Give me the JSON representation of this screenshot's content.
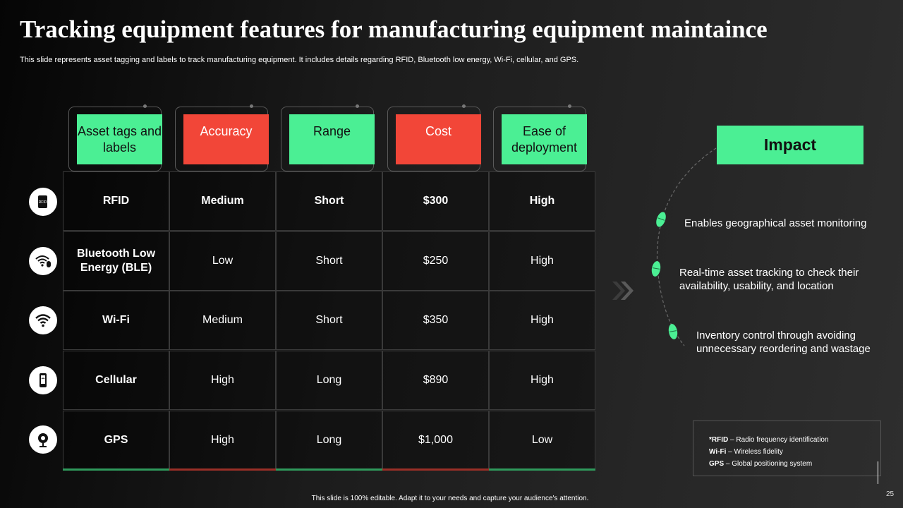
{
  "title": "Tracking equipment features for manufacturing equipment maintaince",
  "subtitle": "This slide represents asset tagging and labels to track manufacturing equipment. It includes details regarding RFID, Bluetooth low energy, Wi-Fi, cellular, and GPS.",
  "table": {
    "headers": [
      {
        "label": "Asset tags and labels",
        "color": "#4bef94"
      },
      {
        "label": "Accuracy",
        "color": "#f24638"
      },
      {
        "label": "Range",
        "color": "#4bef94"
      },
      {
        "label": "Cost",
        "color": "#f24638"
      },
      {
        "label": "Ease of deployment",
        "color": "#4bef94"
      }
    ],
    "rows": [
      {
        "icon": "rfid-tag-icon",
        "cells": [
          "RFID",
          "Medium",
          "Short",
          "$300",
          "High"
        ]
      },
      {
        "icon": "wifi-bluetooth-icon",
        "cells": [
          "Bluetooth Low Energy (BLE)",
          "Low",
          "Short",
          "$250",
          "High"
        ]
      },
      {
        "icon": "wifi-icon",
        "cells": [
          "Wi-Fi",
          "Medium",
          "Short",
          "$350",
          "High"
        ]
      },
      {
        "icon": "cellular-phone-icon",
        "cells": [
          "Cellular",
          "High",
          "Long",
          "$890",
          "High"
        ]
      },
      {
        "icon": "gps-pin-icon",
        "cells": [
          "GPS",
          "High",
          "Long",
          "$1,000",
          "Low"
        ]
      }
    ]
  },
  "impact": {
    "title": "Impact",
    "items": [
      "Enables geographical asset monitoring",
      "Real-time asset tracking to check their availability,  usability, and location",
      "Inventory control through avoiding unnecessary reordering and wastage"
    ]
  },
  "legend": [
    {
      "abbr": "*RFID",
      "text": " – Radio frequency identification"
    },
    {
      "abbr": "Wi-Fi",
      "text": " – Wireless fidelity"
    },
    {
      "abbr": "GPS",
      "text": " – Global positioning system"
    }
  ],
  "footer": "This slide is 100% editable. Adapt it to your needs and capture your audience's attention.",
  "page_number": "25",
  "colors": {
    "accent_green": "#4bef94",
    "accent_red": "#f24638"
  }
}
